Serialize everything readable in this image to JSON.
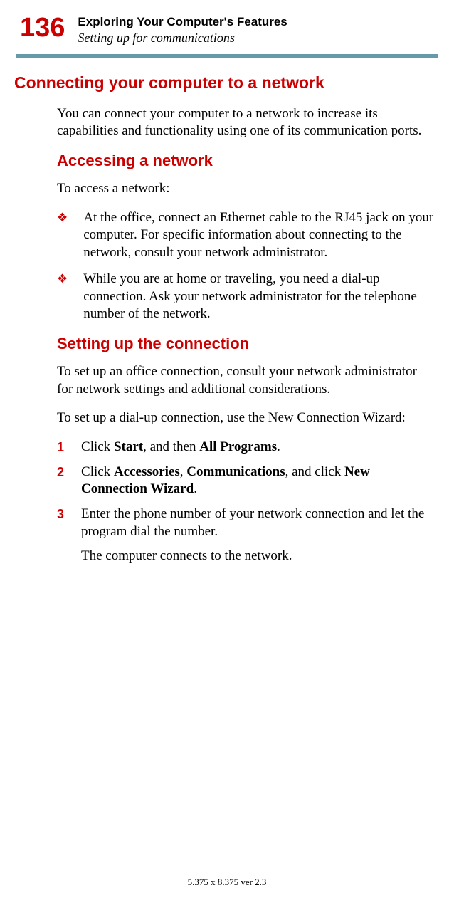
{
  "header": {
    "page_number": "136",
    "chapter_title": "Exploring Your Computer's Features",
    "section_subtitle": "Setting up for communications"
  },
  "colors": {
    "accent_red": "#cc0000",
    "rule_color": "#6699aa",
    "text_black": "#000000",
    "background": "#ffffff"
  },
  "main_section": {
    "title": "Connecting your computer to a network",
    "intro": "You can connect your computer to a network to increase its capabilities and functionality using one of its communication ports."
  },
  "sub_sections": [
    {
      "title": "Accessing a network",
      "intro": "To access a network:",
      "bullets": [
        "At the office, connect an Ethernet cable to the RJ45 jack on your computer. For specific information about connecting to the network, consult your network administrator.",
        "While you are at home or traveling, you need a dial-up connection. Ask your network administrator for the telephone number of the network."
      ]
    },
    {
      "title": "Setting up the connection",
      "intro1": "To set up an office connection, consult your network administrator for network settings and additional considerations.",
      "intro2": "To set up a dial-up connection, use the New Connection Wizard:",
      "steps": [
        {
          "n": "1",
          "parts": [
            "Click ",
            {
              "b": "Start"
            },
            ", and then ",
            {
              "b": "All Programs"
            },
            "."
          ]
        },
        {
          "n": "2",
          "parts": [
            "Click ",
            {
              "b": "Accessories"
            },
            ", ",
            {
              "b": "Communications"
            },
            ", and click ",
            {
              "b": "New Connection Wizard"
            },
            "."
          ]
        },
        {
          "n": "3",
          "parts": [
            "Enter the phone number of your network connection and let the program dial the number."
          ]
        }
      ],
      "result": "The computer connects to the network."
    }
  ],
  "footer": "5.375 x 8.375 ver 2.3"
}
